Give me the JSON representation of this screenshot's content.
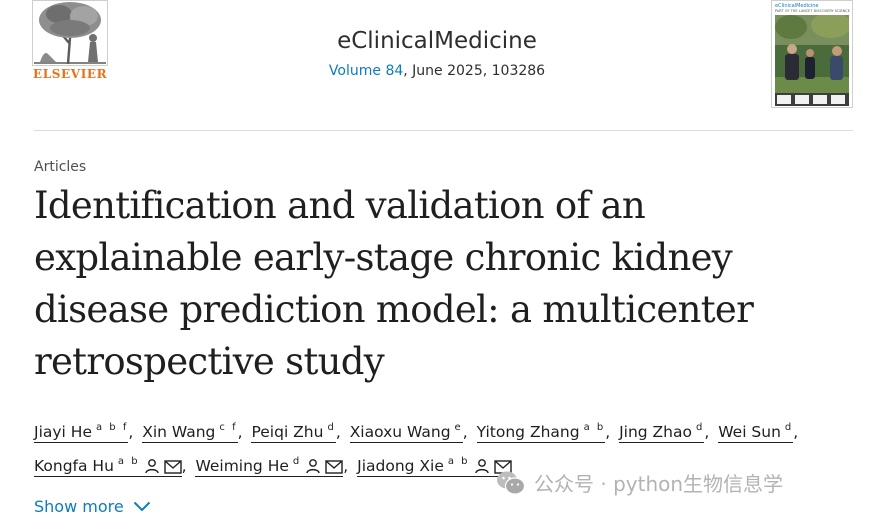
{
  "publisher": {
    "name": "ELSEVIER"
  },
  "journal": {
    "title": "eClinicalMedicine",
    "volume_link": "Volume 84",
    "issue_rest": ", June 2025, 103286"
  },
  "cover": {
    "title": "eClinicalMedicine",
    "subtitle": "PART OF THE LANCET DISCOVERY SCIENCE"
  },
  "article": {
    "type": "Articles",
    "title": "Identification and validation of an explainable early-stage chronic kidney disease prediction model: a multicenter retrospective study"
  },
  "authors": [
    {
      "name": "Jiayi He",
      "sup": "a b f"
    },
    {
      "name": "Xin Wang",
      "sup": "c f"
    },
    {
      "name": "Peiqi Zhu",
      "sup": "d"
    },
    {
      "name": "Xiaoxu Wang",
      "sup": "e"
    },
    {
      "name": "Yitong Zhang",
      "sup": "a b"
    },
    {
      "name": "Jing Zhao",
      "sup": "d"
    },
    {
      "name": "Wei Sun",
      "sup": "d"
    },
    {
      "name": "Kongfa Hu",
      "sup": "a b"
    },
    {
      "name": "Weiming He",
      "sup": "d"
    },
    {
      "name": "Jiadong Xie",
      "sup": "a b"
    }
  ],
  "show_more": "Show more",
  "watermark": "公众号 · python生物信息学",
  "colors": {
    "link": "#0c7dbb",
    "elsevier_orange": "#e9711c",
    "text": "#1f1f1f"
  }
}
